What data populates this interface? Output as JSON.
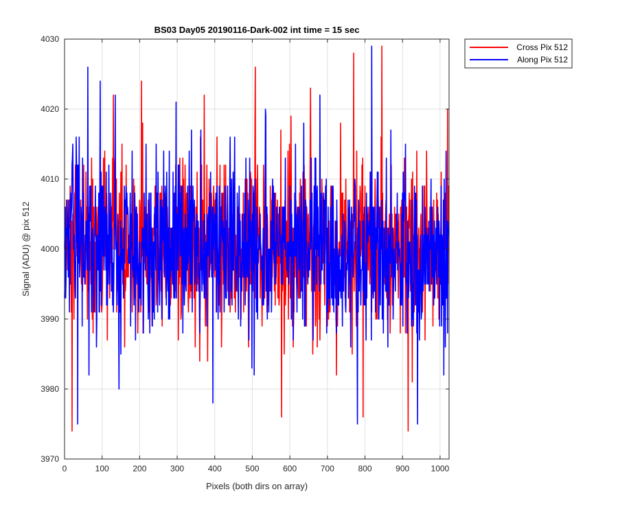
{
  "chart_data": {
    "type": "line",
    "title": "BS03 Day05 20190116-Dark-002 int time = 15 sec",
    "xlabel": "Pixels (both dirs on array)",
    "ylabel": "Signal (ADU) @ pix 512",
    "xlim": [
      0,
      1024
    ],
    "ylim": [
      3970,
      4030
    ],
    "xticks": [
      0,
      100,
      200,
      300,
      400,
      500,
      600,
      700,
      800,
      900,
      1000
    ],
    "yticks": [
      3970,
      3980,
      3990,
      4000,
      4010,
      4020,
      4030
    ],
    "grid": true,
    "legend_position": "outside-top-right",
    "n_points": 1024,
    "series": [
      {
        "name": "Cross Pix 512",
        "color": "#ff0000",
        "mean": 4000,
        "noise_range": [
          3974,
          4029
        ],
        "notable_peaks": [
          {
            "x": 20,
            "y": 3974
          },
          {
            "x": 130,
            "y": 4022
          },
          {
            "x": 205,
            "y": 4024
          },
          {
            "x": 372,
            "y": 4022
          },
          {
            "x": 508,
            "y": 4026
          },
          {
            "x": 578,
            "y": 3976
          },
          {
            "x": 655,
            "y": 4023
          },
          {
            "x": 770,
            "y": 4028
          },
          {
            "x": 795,
            "y": 3976
          },
          {
            "x": 845,
            "y": 4029
          },
          {
            "x": 915,
            "y": 3974
          },
          {
            "x": 1020,
            "y": 4020
          }
        ]
      },
      {
        "name": "Along Pix 512",
        "color": "#0000ff",
        "mean": 4000,
        "noise_range": [
          3975,
          4029
        ],
        "notable_peaks": [
          {
            "x": 35,
            "y": 3975
          },
          {
            "x": 62,
            "y": 4026
          },
          {
            "x": 95,
            "y": 4024
          },
          {
            "x": 135,
            "y": 4022
          },
          {
            "x": 395,
            "y": 3978
          },
          {
            "x": 535,
            "y": 4020
          },
          {
            "x": 680,
            "y": 4022
          },
          {
            "x": 780,
            "y": 3975
          },
          {
            "x": 818,
            "y": 4029
          },
          {
            "x": 940,
            "y": 3975
          },
          {
            "x": 1010,
            "y": 3982
          }
        ]
      }
    ]
  }
}
